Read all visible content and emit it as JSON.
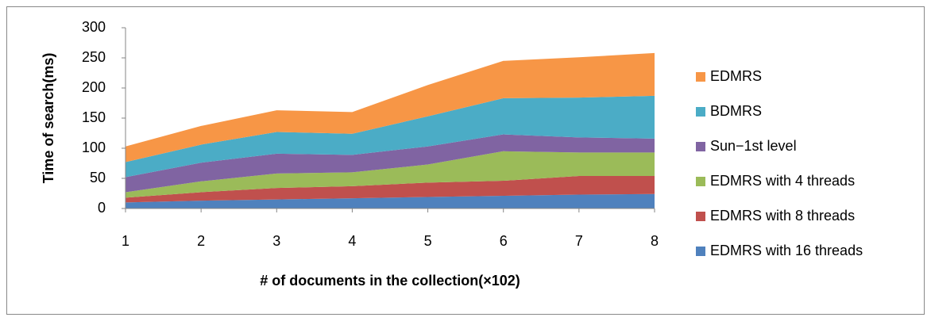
{
  "chart_data": {
    "type": "stacked_area",
    "x": [
      1,
      2,
      3,
      4,
      5,
      6,
      7,
      8
    ],
    "xlim": [
      1,
      8
    ],
    "xticks": [
      1,
      2,
      3,
      4,
      5,
      6,
      7,
      8
    ],
    "ylim": [
      0,
      300
    ],
    "yticks": [
      0,
      50,
      100,
      150,
      200,
      250,
      300
    ],
    "xlabel": "# of documents in the collection(×102)",
    "ylabel": "Time of search(ms)",
    "legend": "right",
    "series": [
      {
        "name": "EDMRS with 16 threads",
        "color": "#4f81bd",
        "values": [
          10,
          13,
          15,
          17,
          19,
          21,
          23,
          24
        ]
      },
      {
        "name": "EDMRS with 8 threads",
        "color": "#c0504d",
        "values": [
          8,
          14,
          19,
          20,
          24,
          25,
          31,
          30
        ]
      },
      {
        "name": "EDMRS with 4 threads",
        "color": "#9bbb59",
        "values": [
          9,
          18,
          24,
          23,
          30,
          49,
          39,
          39
        ]
      },
      {
        "name": "Sun−1st level",
        "color": "#8064a2",
        "values": [
          25,
          31,
          33,
          29,
          30,
          28,
          25,
          23
        ]
      },
      {
        "name": "BDMRS",
        "color": "#4bacc6",
        "values": [
          25,
          30,
          36,
          35,
          50,
          60,
          66,
          71
        ]
      },
      {
        "name": "EDMRS",
        "color": "#f79646",
        "values": [
          26,
          31,
          36,
          36,
          52,
          62,
          67,
          71
        ]
      }
    ]
  }
}
